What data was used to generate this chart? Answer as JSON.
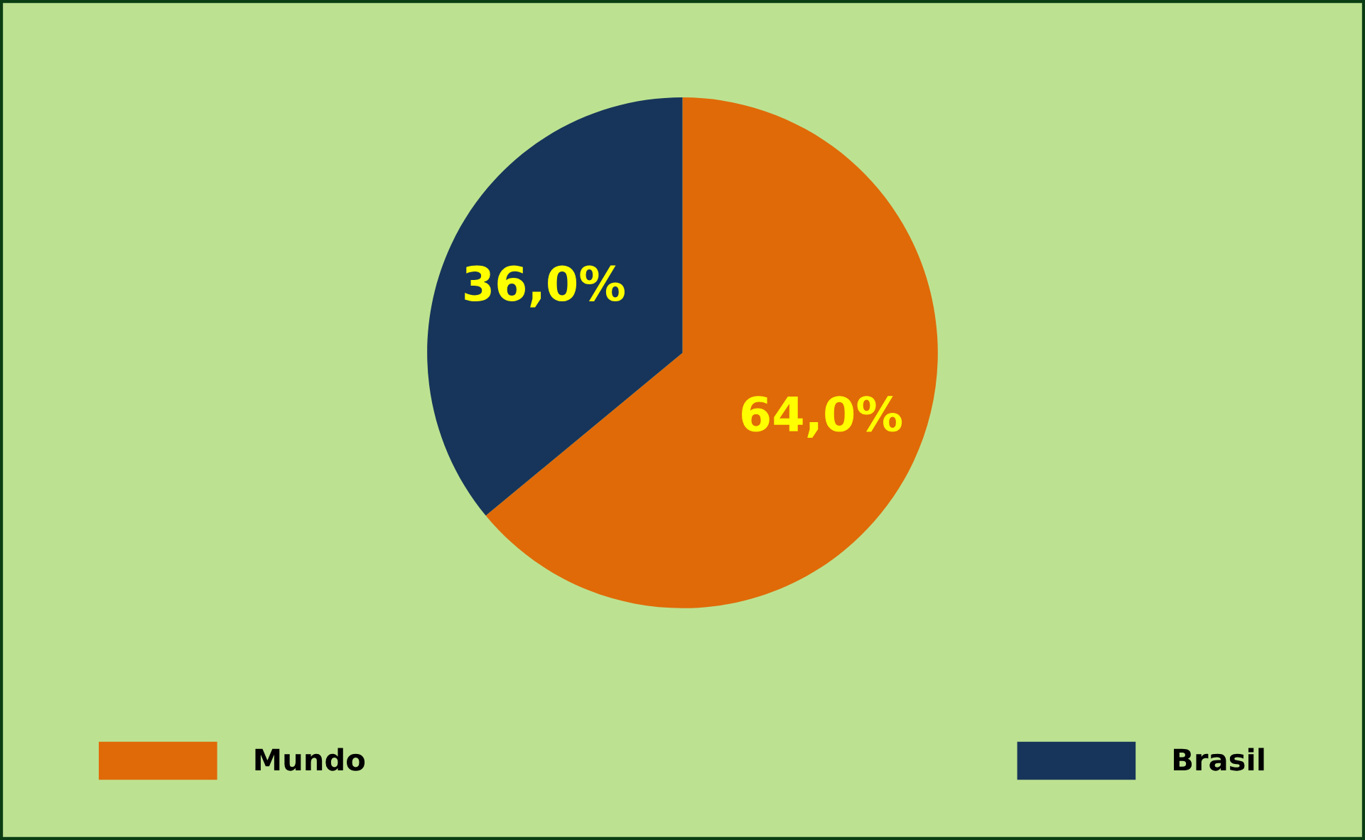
{
  "chart_data": {
    "type": "pie",
    "categories": [
      "Mundo",
      "Brasil"
    ],
    "values": [
      64,
      36
    ],
    "colors": [
      "#e06a08",
      "#17355a"
    ],
    "value_labels": [
      "64,0%",
      "36,0%"
    ],
    "legend": "bottom"
  }
}
